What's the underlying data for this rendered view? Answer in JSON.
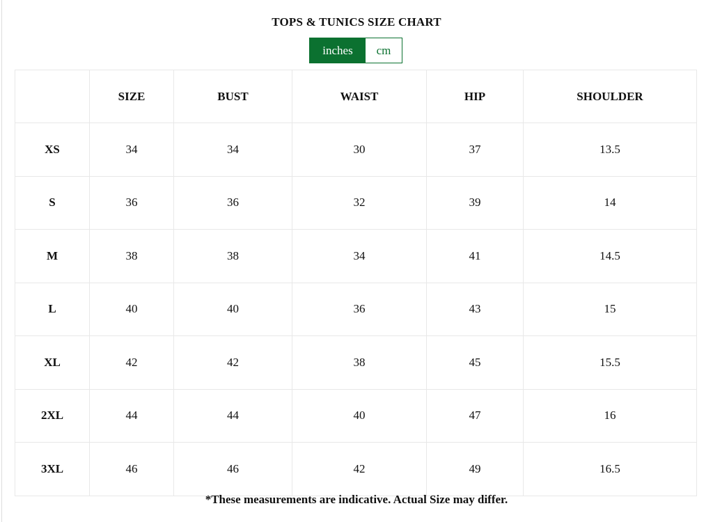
{
  "title": "TOPS & TUNICS SIZE CHART",
  "units": {
    "options": [
      "inches",
      "cm"
    ],
    "selected": "inches"
  },
  "colors": {
    "accent": "#0b7130"
  },
  "table": {
    "headers": [
      "",
      "SIZE",
      "BUST",
      "WAIST",
      "HIP",
      "SHOULDER"
    ],
    "rows": [
      [
        "XS",
        "34",
        "34",
        "30",
        "37",
        "13.5"
      ],
      [
        "S",
        "36",
        "36",
        "32",
        "39",
        "14"
      ],
      [
        "M",
        "38",
        "38",
        "34",
        "41",
        "14.5"
      ],
      [
        "L",
        "40",
        "40",
        "36",
        "43",
        "15"
      ],
      [
        "XL",
        "42",
        "42",
        "38",
        "45",
        "15.5"
      ],
      [
        "2XL",
        "44",
        "44",
        "40",
        "47",
        "16"
      ],
      [
        "3XL",
        "46",
        "46",
        "42",
        "49",
        "16.5"
      ]
    ]
  },
  "note": "*These measurements are indicative. Actual Size may differ."
}
